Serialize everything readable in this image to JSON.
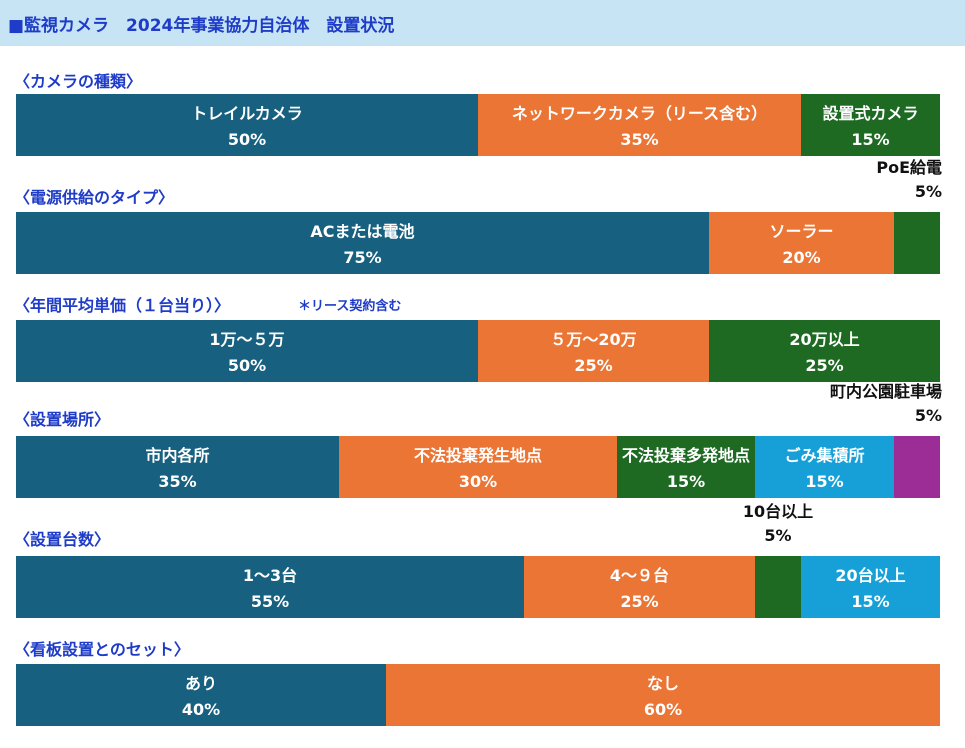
{
  "header": {
    "title": "■監視カメラ　2024年事業協力自治体　設置状況"
  },
  "colors": {
    "header_bg": "#c6e4f4",
    "title_text": "#1f3cc8",
    "navy": "#17607f",
    "orange": "#ea7535",
    "green": "#1e6a23",
    "light_blue": "#17a0d8",
    "purple": "#9c2c96"
  },
  "chart_data": [
    {
      "type": "bar",
      "stacked": true,
      "orientation": "horizontal",
      "title": "〈カメラの種類〉",
      "note": "",
      "series": [
        {
          "name": "トレイルカメラ",
          "value": 50,
          "value_label": "50%",
          "color": "#17607f"
        },
        {
          "name": "ネットワークカメラ（リース含む）",
          "value": 35,
          "value_label": "35%",
          "color": "#ea7535"
        },
        {
          "name": "設置式カメラ",
          "value": 15,
          "value_label": "15%",
          "color": "#1e6a23"
        }
      ]
    },
    {
      "type": "bar",
      "stacked": true,
      "orientation": "horizontal",
      "title": "〈電源供給のタイプ〉",
      "note": "",
      "series": [
        {
          "name": "ACまたは電池",
          "value": 75,
          "value_label": "75%",
          "color": "#17607f"
        },
        {
          "name": "ソーラー",
          "value": 20,
          "value_label": "20%",
          "color": "#ea7535"
        },
        {
          "name": "PoE給電",
          "value": 5,
          "value_label": "5%",
          "color": "#1e6a23",
          "callout": true
        }
      ]
    },
    {
      "type": "bar",
      "stacked": true,
      "orientation": "horizontal",
      "title": "〈年間平均単価（１台当り）〉",
      "note": "＊リース契約含む",
      "series": [
        {
          "name": "1万～５万",
          "value": 50,
          "value_label": "50%",
          "color": "#17607f"
        },
        {
          "name": "５万～20万",
          "value": 25,
          "value_label": "25%",
          "color": "#ea7535"
        },
        {
          "name": "20万以上",
          "value": 25,
          "value_label": "25%",
          "color": "#1e6a23"
        }
      ]
    },
    {
      "type": "bar",
      "stacked": true,
      "orientation": "horizontal",
      "title": "〈設置場所〉",
      "note": "",
      "series": [
        {
          "name": "市内各所",
          "value": 35,
          "value_label": "35%",
          "color": "#17607f"
        },
        {
          "name": "不法投棄発生地点",
          "value": 30,
          "value_label": "30%",
          "color": "#ea7535"
        },
        {
          "name": "不法投棄多発地点",
          "value": 15,
          "value_label": "15%",
          "color": "#1e6a23"
        },
        {
          "name": "ごみ集積所",
          "value": 15,
          "value_label": "15%",
          "color": "#17a0d8"
        },
        {
          "name": "町内公園駐車場",
          "value": 5,
          "value_label": "5%",
          "color": "#9c2c96",
          "callout": true
        }
      ]
    },
    {
      "type": "bar",
      "stacked": true,
      "orientation": "horizontal",
      "title": "〈設置台数〉",
      "note": "",
      "series": [
        {
          "name": "1～3台",
          "value": 55,
          "value_label": "55%",
          "color": "#17607f"
        },
        {
          "name": "4～９台",
          "value": 25,
          "value_label": "25%",
          "color": "#ea7535"
        },
        {
          "name": "10台以上",
          "value": 5,
          "value_label": "5%",
          "color": "#1e6a23",
          "callout": true
        },
        {
          "name": "20台以上",
          "value": 15,
          "value_label": "15%",
          "color": "#17a0d8"
        }
      ]
    },
    {
      "type": "bar",
      "stacked": true,
      "orientation": "horizontal",
      "title": "〈看板設置とのセット〉",
      "note": "",
      "series": [
        {
          "name": "あり",
          "value": 40,
          "value_label": "40%",
          "color": "#17607f"
        },
        {
          "name": "なし",
          "value": 60,
          "value_label": "60%",
          "color": "#ea7535"
        }
      ]
    }
  ]
}
